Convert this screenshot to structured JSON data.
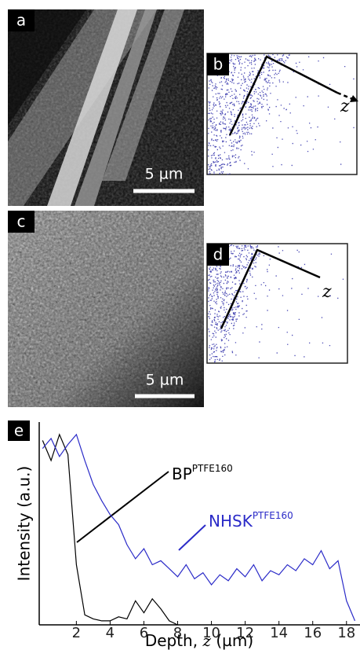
{
  "panels": [
    {
      "label": "a",
      "scale_bar": "5 µm"
    },
    {
      "label": "b",
      "axis_label": "z"
    },
    {
      "label": "c",
      "scale_bar": "5 µm"
    },
    {
      "label": "d",
      "axis_label": "z"
    }
  ],
  "chart_data": {
    "type": "line",
    "panel_label": "e",
    "xlabel": {
      "prefix": "Depth,",
      "variable": "z",
      "unit": "(µm)"
    },
    "ylabel": "Intensity  (a.u.)",
    "xlim": [
      -0.2,
      18.8
    ],
    "ylim": [
      0,
      1
    ],
    "xticks": [
      2,
      4,
      6,
      8,
      10,
      12,
      14,
      16,
      18
    ],
    "x": [
      0,
      0.5,
      1,
      1.5,
      2,
      2.5,
      3,
      3.5,
      4,
      4.5,
      5,
      5.5,
      6,
      6.5,
      7,
      7.5,
      8,
      8.5,
      9,
      9.5,
      10,
      10.5,
      11,
      11.5,
      12,
      12.5,
      13,
      13.5,
      14,
      14.5,
      15,
      15.5,
      16,
      16.5,
      17,
      17.5,
      18,
      18.5
    ],
    "series": [
      {
        "name": "BP",
        "sup": "PTFE160",
        "color": "#000000",
        "values": [
          0.92,
          0.82,
          0.95,
          0.85,
          0.3,
          0.05,
          0.03,
          0.02,
          0.02,
          0.04,
          0.03,
          0.12,
          0.06,
          0.13,
          0.08,
          0.02,
          0,
          null,
          null,
          null,
          null,
          null,
          null,
          null,
          null,
          null,
          null,
          null,
          null,
          null,
          null,
          null,
          null,
          null,
          null,
          null,
          null,
          null
        ]
      },
      {
        "name": "NHSK",
        "sup": "PTFE160",
        "color": "#2b2bc8",
        "values": [
          0.88,
          0.93,
          0.84,
          0.9,
          0.95,
          0.82,
          0.7,
          0.62,
          0.55,
          0.5,
          0.4,
          0.33,
          0.38,
          0.3,
          0.32,
          0.28,
          0.24,
          0.3,
          0.23,
          0.26,
          0.2,
          0.25,
          0.22,
          0.28,
          0.24,
          0.3,
          0.22,
          0.27,
          0.25,
          0.3,
          0.27,
          0.33,
          0.3,
          0.37,
          0.28,
          0.32,
          0.12,
          0.02
        ]
      }
    ]
  }
}
